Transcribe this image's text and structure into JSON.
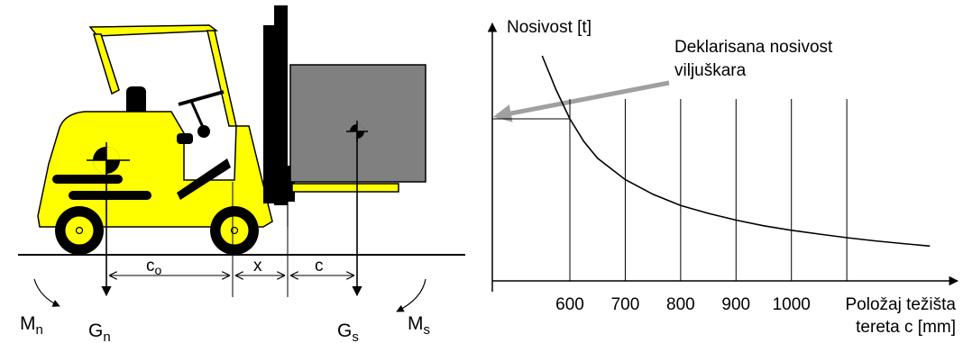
{
  "colors": {
    "forklift_body": "#ffff00",
    "load_box": "#808080",
    "ink": "#000000",
    "callout_arrow": "#a0a0a0"
  },
  "forklift_diagram": {
    "dimensions": {
      "c_o": "c",
      "c_o_sub": "o",
      "x": "x",
      "c": "c"
    },
    "forces": {
      "G_n": "G",
      "G_n_sub": "n",
      "G_s": "G",
      "G_s_sub": "s"
    },
    "moments": {
      "M_n": "M",
      "M_n_sub": "n",
      "M_s": "M",
      "M_s_sub": "s"
    }
  },
  "chart_data": {
    "type": "line",
    "ylabel": "Nosivost [t]",
    "xlabel_line1": "Položaj težišta",
    "xlabel_line2": "tereta c [mm]",
    "tick_labels": [
      "600",
      "700",
      "800",
      "900",
      "1000"
    ],
    "x_ticks": [
      600,
      700,
      800,
      900,
      1000,
      1100
    ],
    "xlim": [
      460,
      1300
    ],
    "ylim": [
      0,
      1
    ],
    "callout_line1": "Deklarisana nosivost",
    "callout_line2": "viljuškara",
    "declared_capacity_x": 600,
    "declared_capacity_y": 0.72,
    "curve": {
      "x": [
        550,
        575,
        600,
        625,
        650,
        700,
        750,
        800,
        850,
        900,
        950,
        1000,
        1050,
        1100,
        1150,
        1200,
        1250
      ],
      "y": [
        1.0,
        0.85,
        0.72,
        0.62,
        0.545,
        0.45,
        0.385,
        0.335,
        0.3,
        0.27,
        0.245,
        0.225,
        0.208,
        0.192,
        0.178,
        0.166,
        0.155
      ]
    }
  }
}
